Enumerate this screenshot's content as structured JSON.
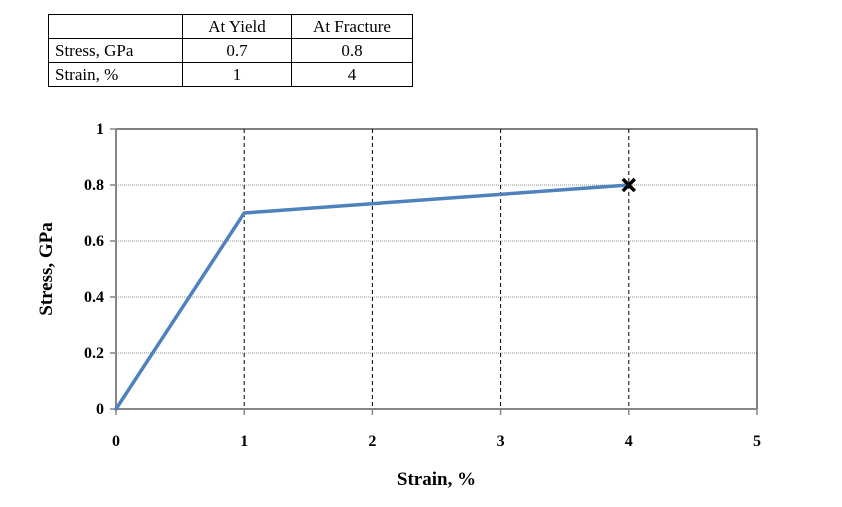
{
  "table": {
    "headers": [
      "",
      "At Yield",
      "At Fracture"
    ],
    "rows": [
      {
        "label": "Stress, GPa",
        "yield": "0.7",
        "fracture": "0.8"
      },
      {
        "label": "Strain, %",
        "yield": "1",
        "fracture": "4"
      }
    ]
  },
  "chart_data": {
    "type": "line",
    "title": "",
    "xlabel": "Strain, %",
    "ylabel": "Stress, GPa",
    "xlim": [
      0,
      5
    ],
    "ylim": [
      0,
      1
    ],
    "xticks": [
      "0",
      "1",
      "2",
      "3",
      "4",
      "5"
    ],
    "yticks": [
      "0",
      "0.2",
      "0.4",
      "0.6",
      "0.8",
      "1"
    ],
    "grid": {
      "horizontal": "dotted",
      "vertical": "dashed"
    },
    "series": [
      {
        "color": "#4f81bd",
        "points": [
          {
            "x": 0,
            "y": 0
          },
          {
            "x": 1,
            "y": 0.7
          },
          {
            "x": 4,
            "y": 0.8
          }
        ]
      }
    ],
    "marker": {
      "symbol": "x",
      "x": 4,
      "y": 0.8,
      "color": "#000000"
    }
  }
}
